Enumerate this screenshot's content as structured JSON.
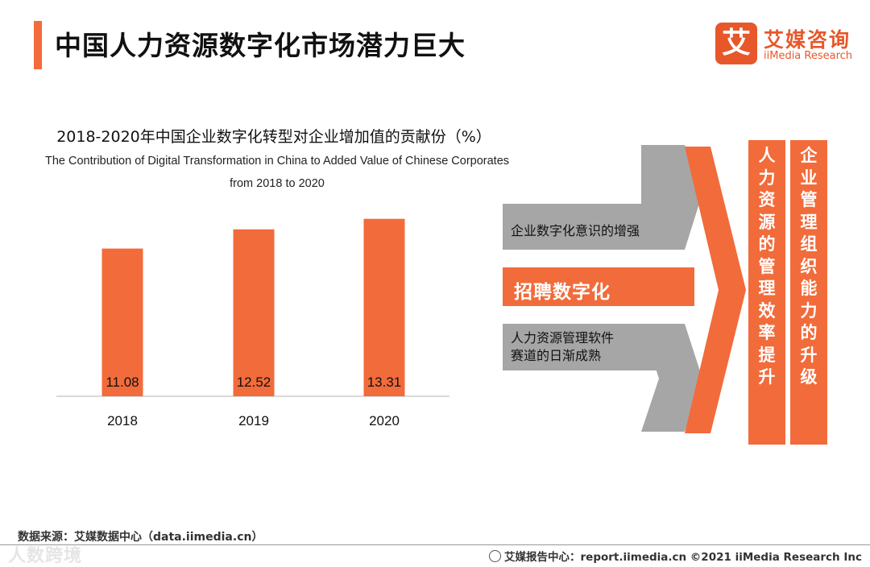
{
  "header": {
    "title": "中国人力资源数字化市场潜力巨大",
    "logo_mark": "艾",
    "logo_cn": "艾媒咨询",
    "logo_en": "iiMedia Research"
  },
  "chart_data": {
    "type": "bar",
    "title": "2018-2020年中国企业数字化转型对企业增加值的贡献份（%）",
    "subtitle": "The Contribution of Digital Transformation in China to Added Value of Chinese Corporates from 2018 to 2020",
    "categories": [
      "2018",
      "2019",
      "2020"
    ],
    "values": [
      11.08,
      12.52,
      13.31
    ],
    "value_labels": [
      "11.08",
      "12.52",
      "13.31"
    ],
    "ylim": [
      0,
      14.5
    ],
    "xlabel": "",
    "ylabel": "",
    "grid": false,
    "color": "#f26b3a"
  },
  "diagram": {
    "top_arrow_label": "企业数字化意识的增强",
    "center_label": "招聘数字化",
    "bottom_arrow_label_line1": "人力资源管理软件",
    "bottom_arrow_label_line2": "赛道的日渐成熟",
    "column1": [
      "人",
      "力",
      "资",
      "源",
      "的",
      "管",
      "理",
      "效",
      "率",
      "提",
      "升"
    ],
    "column2": [
      "企",
      "业",
      "管",
      "理",
      "组",
      "织",
      "能",
      "力",
      "的",
      "升",
      "级"
    ]
  },
  "footer": {
    "source": "数据来源：艾媒数据中心（data.iimedia.cn）",
    "report": "艾媒报告中心：report.iimedia.cn    ©2021  iiMedia Research  Inc",
    "watermark": "人数跨境"
  },
  "colors": {
    "accent": "#f26b3a",
    "gray": "#a6a6a6",
    "brand": "#e8572a"
  }
}
